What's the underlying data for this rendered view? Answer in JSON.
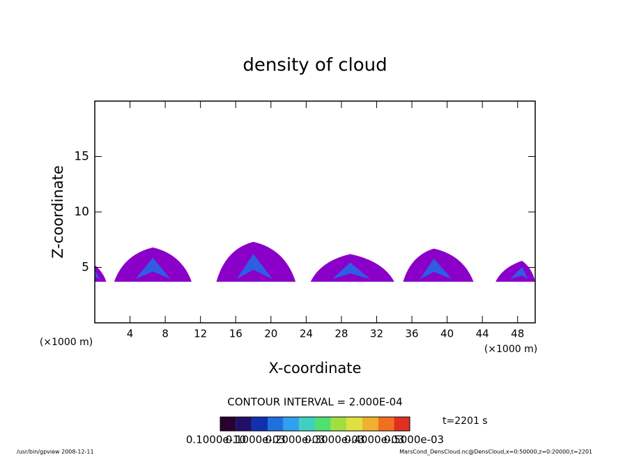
{
  "chart_data": {
    "type": "contour",
    "title": "density of cloud",
    "xlabel": "X-coordinate",
    "ylabel": "Z-coordinate",
    "x_unit": "(×1000 m)",
    "y_unit": "(×1000 m)",
    "xlim": [
      0,
      50
    ],
    "ylim": [
      0,
      20
    ],
    "xticks": [
      4,
      8,
      12,
      16,
      20,
      24,
      28,
      32,
      36,
      40,
      44,
      48
    ],
    "yticks": [
      5,
      10,
      15
    ],
    "clouds": [
      {
        "x": [
          0,
          0,
          1.3
        ],
        "z": [
          3.7,
          5.2
        ]
      },
      {
        "x": [
          2.2,
          6.6,
          11
        ],
        "z": [
          3.7,
          6.8
        ]
      },
      {
        "x": [
          13.8,
          18,
          22.8
        ],
        "z": [
          3.7,
          7.3
        ]
      },
      {
        "x": [
          24.5,
          29,
          34
        ],
        "z": [
          3.7,
          6.2
        ]
      },
      {
        "x": [
          35,
          38.5,
          43
        ],
        "z": [
          3.7,
          6.7
        ]
      },
      {
        "x": [
          45.5,
          48.5,
          50
        ],
        "z": [
          3.7,
          5.6
        ]
      }
    ],
    "fill_color": "#8a00c8",
    "core_color": "#1e6ee8",
    "contour_interval": "CONTOUR INTERVAL = 2.000E-04",
    "time": "t=2201 s",
    "colorbar_colors": [
      "#2a0030",
      "#20106a",
      "#1030b0",
      "#2070e0",
      "#30a0f0",
      "#40d0c0",
      "#50e070",
      "#a0e040",
      "#e0e040",
      "#f0b030",
      "#f07020",
      "#e03020"
    ],
    "colorbar_labels": [
      "0.1000e-10",
      "0.1000e-03",
      "0.2000e-03",
      "0.3000e-03",
      "0.4000e-03",
      "0.5000e-03"
    ],
    "footer_left": "/usr/bin/gpview   2008-12-11",
    "footer_right": "MarsCond_DensCloud.nc@DensCloud,x=0:50000,z=0:20000,t=2201"
  }
}
